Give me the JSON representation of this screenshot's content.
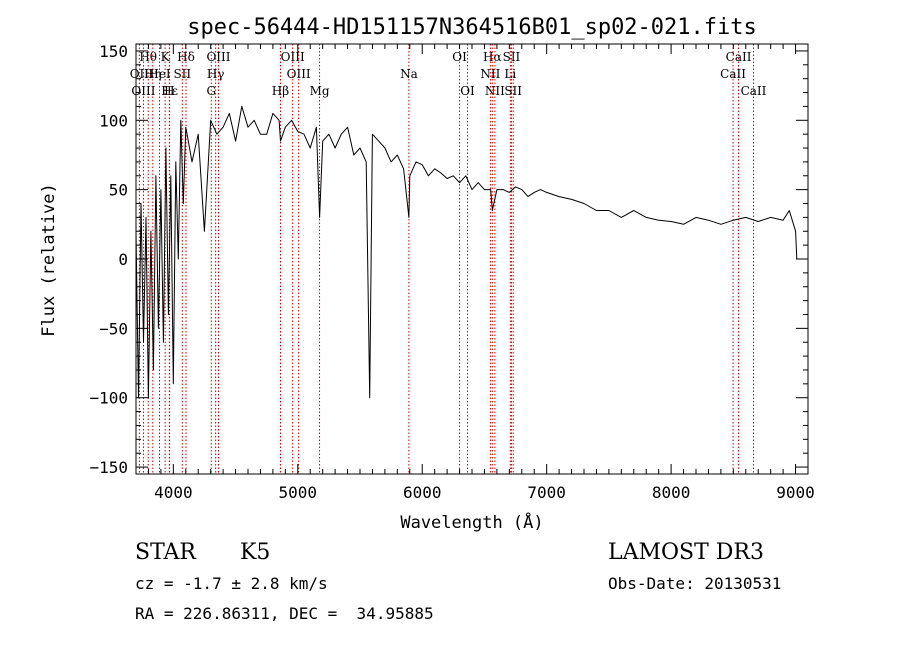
{
  "chart_data": {
    "type": "line",
    "title": "spec-56444-HD151157N364516B01_sp02-021.fits",
    "xlabel": "Wavelength (Å)",
    "ylabel": "Flux (relative)",
    "xlim": [
      3700,
      9100
    ],
    "ylim": [
      -155,
      155
    ],
    "xticks": [
      4000,
      5000,
      6000,
      7000,
      8000,
      9000
    ],
    "yticks": [
      -150,
      -100,
      -50,
      0,
      50,
      100,
      150
    ],
    "grid": false,
    "series": [
      {
        "name": "flux",
        "x": [
          3700,
          3720,
          3740,
          3760,
          3780,
          3800,
          3820,
          3840,
          3860,
          3880,
          3900,
          3920,
          3940,
          3960,
          3980,
          4000,
          4020,
          4040,
          4060,
          4080,
          4100,
          4150,
          4200,
          4250,
          4300,
          4350,
          4400,
          4450,
          4500,
          4550,
          4600,
          4650,
          4700,
          4750,
          4800,
          4850,
          4861,
          4900,
          4950,
          5000,
          5050,
          5100,
          5150,
          5175,
          5200,
          5250,
          5300,
          5350,
          5400,
          5450,
          5500,
          5550,
          5578,
          5600,
          5650,
          5700,
          5750,
          5800,
          5850,
          5893,
          5900,
          5950,
          6000,
          6050,
          6100,
          6150,
          6200,
          6250,
          6300,
          6350,
          6400,
          6450,
          6500,
          6550,
          6563,
          6600,
          6650,
          6700,
          6750,
          6800,
          6850,
          6900,
          6950,
          7000,
          7100,
          7200,
          7300,
          7400,
          7500,
          7600,
          7700,
          7800,
          7900,
          8000,
          8100,
          8200,
          8300,
          8400,
          8500,
          8600,
          8700,
          8800,
          8900,
          8950,
          9000,
          9010
        ],
        "y": [
          20,
          -100,
          40,
          -60,
          30,
          -100,
          20,
          -80,
          60,
          -50,
          50,
          -60,
          80,
          -40,
          60,
          -90,
          70,
          0,
          100,
          40,
          95,
          70,
          90,
          20,
          100,
          90,
          95,
          105,
          85,
          110,
          95,
          100,
          90,
          90,
          105,
          100,
          85,
          95,
          100,
          92,
          90,
          80,
          95,
          30,
          85,
          90,
          80,
          90,
          95,
          75,
          80,
          70,
          -100,
          90,
          85,
          80,
          70,
          75,
          65,
          30,
          60,
          70,
          68,
          60,
          65,
          62,
          58,
          60,
          55,
          60,
          50,
          55,
          50,
          50,
          35,
          50,
          50,
          48,
          52,
          50,
          45,
          48,
          50,
          48,
          45,
          43,
          40,
          35,
          35,
          30,
          35,
          30,
          28,
          27,
          25,
          30,
          28,
          25,
          28,
          30,
          27,
          30,
          28,
          35,
          20,
          0
        ],
        "color": "#000000"
      }
    ],
    "line_markers": [
      {
        "label": "Hθ",
        "wavelength": 3798,
        "row": 0
      },
      {
        "label": "K",
        "wavelength": 3934,
        "row": 0
      },
      {
        "label": "Hδ",
        "wavelength": 4102,
        "row": 0
      },
      {
        "label": "OIII",
        "wavelength": 4363,
        "row": 0
      },
      {
        "label": "OIII",
        "wavelength": 4959,
        "row": 0
      },
      {
        "label": "OI",
        "wavelength": 6300,
        "row": 0
      },
      {
        "label": "Hα",
        "wavelength": 6563,
        "row": 0
      },
      {
        "label": "SII",
        "wavelength": 6717,
        "row": 0
      },
      {
        "label": "CaII",
        "wavelength": 8542,
        "row": 0
      },
      {
        "label": "OII",
        "wavelength": 3727,
        "row": 1
      },
      {
        "label": "Hη",
        "wavelength": 3835,
        "row": 1
      },
      {
        "label": "HeI",
        "wavelength": 3889,
        "row": 1
      },
      {
        "label": "SII",
        "wavelength": 4072,
        "row": 1
      },
      {
        "label": "Hγ",
        "wavelength": 4340,
        "row": 1
      },
      {
        "label": "OIII",
        "wavelength": 5007,
        "row": 1
      },
      {
        "label": "Na",
        "wavelength": 5893,
        "row": 1
      },
      {
        "label": "NII",
        "wavelength": 6548,
        "row": 1
      },
      {
        "label": "Li",
        "wavelength": 6708,
        "row": 1
      },
      {
        "label": "CaII",
        "wavelength": 8498,
        "row": 1
      },
      {
        "label": "OIII",
        "wavelength": 3760,
        "row": 2
      },
      {
        "label": "Hε",
        "wavelength": 3970,
        "row": 2
      },
      {
        "label": "H",
        "wavelength": 3968,
        "row": 2
      },
      {
        "label": "G",
        "wavelength": 4305,
        "row": 2
      },
      {
        "label": "Hβ",
        "wavelength": 4861,
        "row": 2
      },
      {
        "label": "Mg",
        "wavelength": 5175,
        "row": 2
      },
      {
        "label": "OI",
        "wavelength": 6364,
        "row": 2
      },
      {
        "label": "NII",
        "wavelength": 6584,
        "row": 2
      },
      {
        "label": "SII",
        "wavelength": 6731,
        "row": 2
      },
      {
        "label": "CaII",
        "wavelength": 8662,
        "row": 2
      }
    ],
    "marker_color": "#cc0000"
  },
  "info": {
    "class_label": "STAR",
    "subclass": "K5",
    "survey": "LAMOST DR3",
    "redshift": "cz = -1.7 ± 2.8 km/s",
    "obs_date": "Obs-Date: 20130531",
    "coords": "RA = 226.86311, DEC =  34.95885"
  }
}
